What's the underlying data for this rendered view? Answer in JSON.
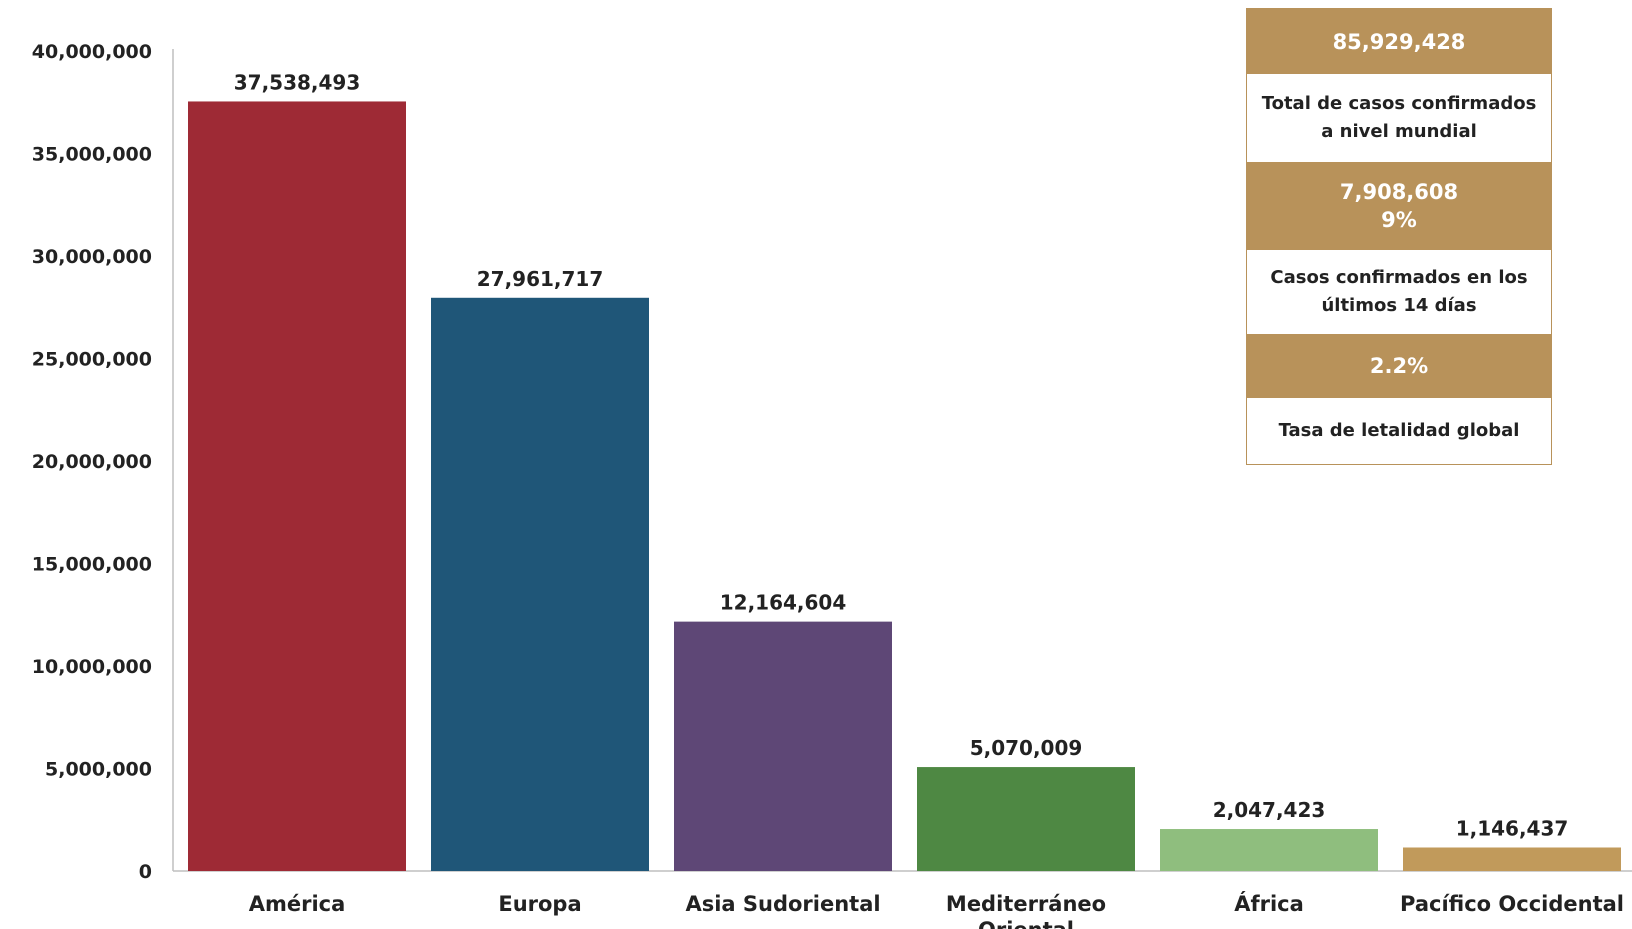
{
  "chart_data": {
    "type": "bar",
    "title": "",
    "xlabel": "",
    "ylabel": "",
    "categories": [
      "América",
      "Europa",
      "Asia Sudoriental",
      "Mediterráneo Oriental",
      "África",
      "Pacífico Occidental"
    ],
    "values": [
      37538493,
      27961717,
      12164604,
      5070009,
      2047423,
      1146437
    ],
    "value_labels": [
      "37,538,493",
      "27,961,717",
      "12,164,604",
      "5,070,009",
      "2,047,423",
      "1,146,437"
    ],
    "colors": [
      "#9e2a35",
      "#1f5678",
      "#5e4776",
      "#4e8843",
      "#8fbe7e",
      "#c19a5b"
    ],
    "ylim": [
      0,
      40000000
    ],
    "yticks": [
      0,
      5000000,
      10000000,
      15000000,
      20000000,
      25000000,
      30000000,
      35000000,
      40000000
    ],
    "ytick_labels": [
      "0",
      "5,000,000",
      "10,000,000",
      "15,000,000",
      "20,000,000",
      "25,000,000",
      "30,000,000",
      "35,000,000",
      "40,000,000"
    ],
    "grid": false,
    "legend": false
  },
  "summary": {
    "total_cases": "85,929,428",
    "total_cases_label": "Total de casos confirmados a nivel mundial",
    "recent_cases": "7,908,608",
    "recent_percent": "9%",
    "recent_label": "Casos confirmados en los últimos 14 días",
    "lethality": "2.2%",
    "lethality_label": "Tasa de letalidad global",
    "accent_color": "#b8925a"
  }
}
